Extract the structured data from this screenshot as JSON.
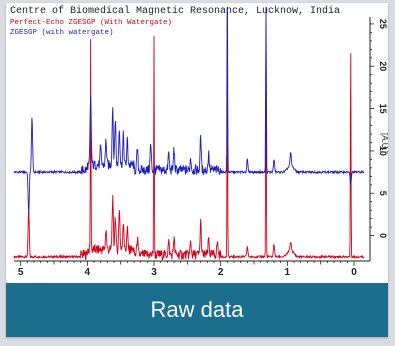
{
  "footer": {
    "label": "Raw data"
  },
  "colors": {
    "red": "#d0021b",
    "blue": "#1f1fb8",
    "footer": "#1b6f8c"
  },
  "chart_data": {
    "type": "line",
    "title": "Centre of Biomedical Magnetic Resonance, Lucknow, India",
    "xlabel": "",
    "ylabel": "[A.U.]",
    "xlim": [
      5.1,
      -0.15
    ],
    "ylim": [
      -3,
      27
    ],
    "x_ticks": [
      "5",
      "4",
      "3",
      "2",
      "1",
      "0"
    ],
    "y_ticks": [
      "25",
      "20",
      "15",
      "10",
      "5",
      "0"
    ],
    "series": [
      {
        "name": "Perfect-Echo ZGESGP (With Watergate)",
        "color": "#d0021b",
        "baseline": -2.5,
        "peaks": [
          [
            4.88,
            5.5
          ],
          [
            3.95,
            25
          ],
          [
            3.72,
            2.5
          ],
          [
            3.62,
            6
          ],
          [
            3.58,
            4
          ],
          [
            3.52,
            5
          ],
          [
            3.46,
            3.5
          ],
          [
            3.4,
            2.5
          ],
          [
            3.25,
            2
          ],
          [
            3.0,
            26
          ],
          [
            2.78,
            1.5
          ],
          [
            2.7,
            2
          ],
          [
            2.45,
            1.5
          ],
          [
            2.3,
            4
          ],
          [
            2.18,
            2
          ],
          [
            2.05,
            1.5
          ],
          [
            1.9,
            26
          ],
          [
            1.6,
            1.2
          ],
          [
            1.32,
            26
          ],
          [
            1.2,
            1.5
          ],
          [
            0.95,
            1
          ],
          [
            0.05,
            26
          ]
        ]
      },
      {
        "name": "ZGESGP (with watergate)",
        "color": "#1f1fb8",
        "baseline": 7.5,
        "peaks": [
          [
            4.88,
            -5
          ],
          [
            4.83,
            6.5
          ],
          [
            3.95,
            8
          ],
          [
            3.8,
            2
          ],
          [
            3.72,
            3
          ],
          [
            3.62,
            7
          ],
          [
            3.58,
            5.5
          ],
          [
            3.52,
            4.5
          ],
          [
            3.46,
            3.5
          ],
          [
            3.4,
            3
          ],
          [
            3.25,
            2.5
          ],
          [
            3.05,
            3
          ],
          [
            2.78,
            2
          ],
          [
            2.7,
            2.5
          ],
          [
            2.45,
            1.5
          ],
          [
            2.3,
            4
          ],
          [
            2.18,
            2
          ],
          [
            1.9,
            26
          ],
          [
            1.6,
            1.5
          ],
          [
            1.32,
            26
          ],
          [
            1.2,
            1.5
          ],
          [
            0.95,
            1.5
          ],
          [
            0.05,
            -1.5
          ]
        ]
      }
    ]
  }
}
